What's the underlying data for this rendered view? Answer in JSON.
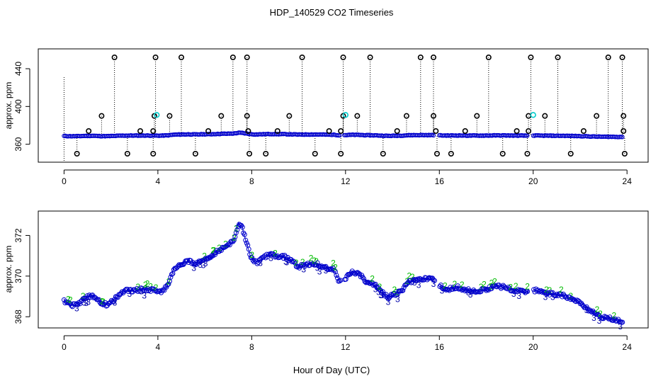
{
  "figure_title": "HDP_140529  CO2 Timeseries",
  "xlabel": "Hour of Day (UTC)",
  "colors": {
    "raw": "#0000cc",
    "outlier": "#000000",
    "cal": "#00cccc",
    "line": "#0000cc",
    "label2": "#00bb00",
    "label3": "#0000aa"
  },
  "chart_data": [
    {
      "type": "scatter",
      "title": "",
      "ylabel": "approx. ppm",
      "xlim": [
        -1.1,
        24.9
      ],
      "ylim": [
        341,
        461
      ],
      "xticks": [
        "0",
        "4",
        "8",
        "12",
        "16",
        "20",
        "24"
      ],
      "yticks": [
        "360",
        "400",
        "440"
      ],
      "baseline_ppm_range": [
        368,
        373
      ],
      "outliers_high": [
        {
          "x": 2.15,
          "y": 452
        },
        {
          "x": 3.9,
          "y": 452
        },
        {
          "x": 5.0,
          "y": 452
        },
        {
          "x": 7.2,
          "y": 452
        },
        {
          "x": 7.8,
          "y": 452
        },
        {
          "x": 10.15,
          "y": 452
        },
        {
          "x": 11.9,
          "y": 452
        },
        {
          "x": 13.05,
          "y": 452
        },
        {
          "x": 15.2,
          "y": 452
        },
        {
          "x": 15.75,
          "y": 452
        },
        {
          "x": 18.1,
          "y": 452
        },
        {
          "x": 19.9,
          "y": 452
        },
        {
          "x": 21.05,
          "y": 452
        },
        {
          "x": 23.2,
          "y": 452
        },
        {
          "x": 23.8,
          "y": 452
        }
      ],
      "outliers_mid": [
        {
          "x": 1.6,
          "y": 390
        },
        {
          "x": 3.85,
          "y": 390
        },
        {
          "x": 4.5,
          "y": 390
        },
        {
          "x": 6.7,
          "y": 390
        },
        {
          "x": 7.8,
          "y": 390
        },
        {
          "x": 9.6,
          "y": 390
        },
        {
          "x": 11.9,
          "y": 390
        },
        {
          "x": 12.5,
          "y": 390
        },
        {
          "x": 14.6,
          "y": 390
        },
        {
          "x": 15.75,
          "y": 390
        },
        {
          "x": 17.6,
          "y": 390
        },
        {
          "x": 19.8,
          "y": 390
        },
        {
          "x": 20.5,
          "y": 390
        },
        {
          "x": 22.7,
          "y": 390
        },
        {
          "x": 23.85,
          "y": 390
        }
      ],
      "outliers_low_shoulder": [
        {
          "x": 1.05,
          "y": 374
        },
        {
          "x": 3.25,
          "y": 374
        },
        {
          "x": 3.8,
          "y": 374
        },
        {
          "x": 6.15,
          "y": 374
        },
        {
          "x": 7.85,
          "y": 374
        },
        {
          "x": 9.1,
          "y": 374
        },
        {
          "x": 11.3,
          "y": 374
        },
        {
          "x": 11.8,
          "y": 374
        },
        {
          "x": 14.2,
          "y": 374
        },
        {
          "x": 15.85,
          "y": 374
        },
        {
          "x": 17.1,
          "y": 374
        },
        {
          "x": 19.3,
          "y": 374
        },
        {
          "x": 19.8,
          "y": 374
        },
        {
          "x": 22.15,
          "y": 374
        },
        {
          "x": 23.85,
          "y": 374
        }
      ],
      "outliers_low": [
        {
          "x": 0.55,
          "y": 350
        },
        {
          "x": 2.7,
          "y": 350
        },
        {
          "x": 3.8,
          "y": 350
        },
        {
          "x": 5.6,
          "y": 350
        },
        {
          "x": 7.9,
          "y": 350
        },
        {
          "x": 8.6,
          "y": 350
        },
        {
          "x": 10.7,
          "y": 350
        },
        {
          "x": 11.8,
          "y": 350
        },
        {
          "x": 13.6,
          "y": 350
        },
        {
          "x": 15.9,
          "y": 350
        },
        {
          "x": 16.5,
          "y": 350
        },
        {
          "x": 18.7,
          "y": 350
        },
        {
          "x": 19.75,
          "y": 350
        },
        {
          "x": 21.6,
          "y": 350
        },
        {
          "x": 23.9,
          "y": 350
        }
      ],
      "calibration_points": [
        {
          "x": 3.95,
          "y": 391
        },
        {
          "x": 12.0,
          "y": 391
        },
        {
          "x": 20.0,
          "y": 391
        }
      ]
    },
    {
      "type": "scatter",
      "title": "",
      "ylabel": "approx. ppm",
      "xlim": [
        -1.1,
        24.9
      ],
      "ylim": [
        367.45,
        373.2
      ],
      "xticks": [
        "0",
        "4",
        "8",
        "12",
        "16",
        "20",
        "24"
      ],
      "yticks": [
        "368",
        "370",
        "372"
      ],
      "point_symbols": [
        "o",
        "2",
        "3"
      ],
      "series_gap_hours": [
        [
          11.8,
          11.95
        ],
        [
          15.8,
          16.0
        ],
        [
          19.8,
          20.0
        ]
      ],
      "profile": [
        {
          "x": 0.0,
          "y": 368.8
        },
        {
          "x": 0.3,
          "y": 368.55
        },
        {
          "x": 0.6,
          "y": 368.6
        },
        {
          "x": 0.9,
          "y": 368.95
        },
        {
          "x": 1.2,
          "y": 369.05
        },
        {
          "x": 1.5,
          "y": 368.75
        },
        {
          "x": 1.8,
          "y": 368.6
        },
        {
          "x": 2.1,
          "y": 368.8
        },
        {
          "x": 2.4,
          "y": 369.15
        },
        {
          "x": 2.7,
          "y": 369.3
        },
        {
          "x": 3.0,
          "y": 369.3
        },
        {
          "x": 3.4,
          "y": 369.35
        },
        {
          "x": 3.8,
          "y": 369.3
        },
        {
          "x": 4.1,
          "y": 369.2
        },
        {
          "x": 4.4,
          "y": 369.5
        },
        {
          "x": 4.7,
          "y": 370.4
        },
        {
          "x": 5.0,
          "y": 370.6
        },
        {
          "x": 5.3,
          "y": 370.75
        },
        {
          "x": 5.6,
          "y": 370.6
        },
        {
          "x": 5.9,
          "y": 370.85
        },
        {
          "x": 6.2,
          "y": 370.85
        },
        {
          "x": 6.5,
          "y": 371.2
        },
        {
          "x": 6.8,
          "y": 371.4
        },
        {
          "x": 7.05,
          "y": 371.55
        },
        {
          "x": 7.25,
          "y": 371.8
        },
        {
          "x": 7.45,
          "y": 372.6
        },
        {
          "x": 7.6,
          "y": 372.4
        },
        {
          "x": 7.75,
          "y": 371.75
        },
        {
          "x": 8.0,
          "y": 370.85
        },
        {
          "x": 8.2,
          "y": 370.65
        },
        {
          "x": 8.5,
          "y": 370.9
        },
        {
          "x": 8.8,
          "y": 371.1
        },
        {
          "x": 9.1,
          "y": 370.95
        },
        {
          "x": 9.4,
          "y": 370.95
        },
        {
          "x": 9.7,
          "y": 370.75
        },
        {
          "x": 10.0,
          "y": 370.45
        },
        {
          "x": 10.4,
          "y": 370.6
        },
        {
          "x": 10.8,
          "y": 370.6
        },
        {
          "x": 11.2,
          "y": 370.4
        },
        {
          "x": 11.5,
          "y": 370.3
        },
        {
          "x": 11.75,
          "y": 369.7
        },
        {
          "x": 12.0,
          "y": 369.9
        },
        {
          "x": 12.3,
          "y": 370.2
        },
        {
          "x": 12.6,
          "y": 370.1
        },
        {
          "x": 12.9,
          "y": 369.7
        },
        {
          "x": 13.2,
          "y": 369.6
        },
        {
          "x": 13.5,
          "y": 369.3
        },
        {
          "x": 13.8,
          "y": 368.95
        },
        {
          "x": 14.1,
          "y": 369.1
        },
        {
          "x": 14.4,
          "y": 369.3
        },
        {
          "x": 14.7,
          "y": 369.7
        },
        {
          "x": 15.0,
          "y": 369.85
        },
        {
          "x": 15.4,
          "y": 369.85
        },
        {
          "x": 15.75,
          "y": 369.85
        },
        {
          "x": 16.1,
          "y": 369.45
        },
        {
          "x": 16.4,
          "y": 369.35
        },
        {
          "x": 16.8,
          "y": 369.45
        },
        {
          "x": 17.2,
          "y": 369.3
        },
        {
          "x": 17.6,
          "y": 369.25
        },
        {
          "x": 18.0,
          "y": 369.35
        },
        {
          "x": 18.4,
          "y": 369.5
        },
        {
          "x": 18.8,
          "y": 369.45
        },
        {
          "x": 19.2,
          "y": 369.3
        },
        {
          "x": 19.7,
          "y": 369.2
        },
        {
          "x": 20.1,
          "y": 369.3
        },
        {
          "x": 20.5,
          "y": 369.2
        },
        {
          "x": 20.9,
          "y": 369.1
        },
        {
          "x": 21.3,
          "y": 369.05
        },
        {
          "x": 21.7,
          "y": 368.85
        },
        {
          "x": 22.1,
          "y": 368.6
        },
        {
          "x": 22.4,
          "y": 368.3
        },
        {
          "x": 22.7,
          "y": 368.1
        },
        {
          "x": 23.0,
          "y": 367.95
        },
        {
          "x": 23.3,
          "y": 367.9
        },
        {
          "x": 23.6,
          "y": 367.8
        },
        {
          "x": 23.8,
          "y": 367.8
        }
      ]
    }
  ]
}
